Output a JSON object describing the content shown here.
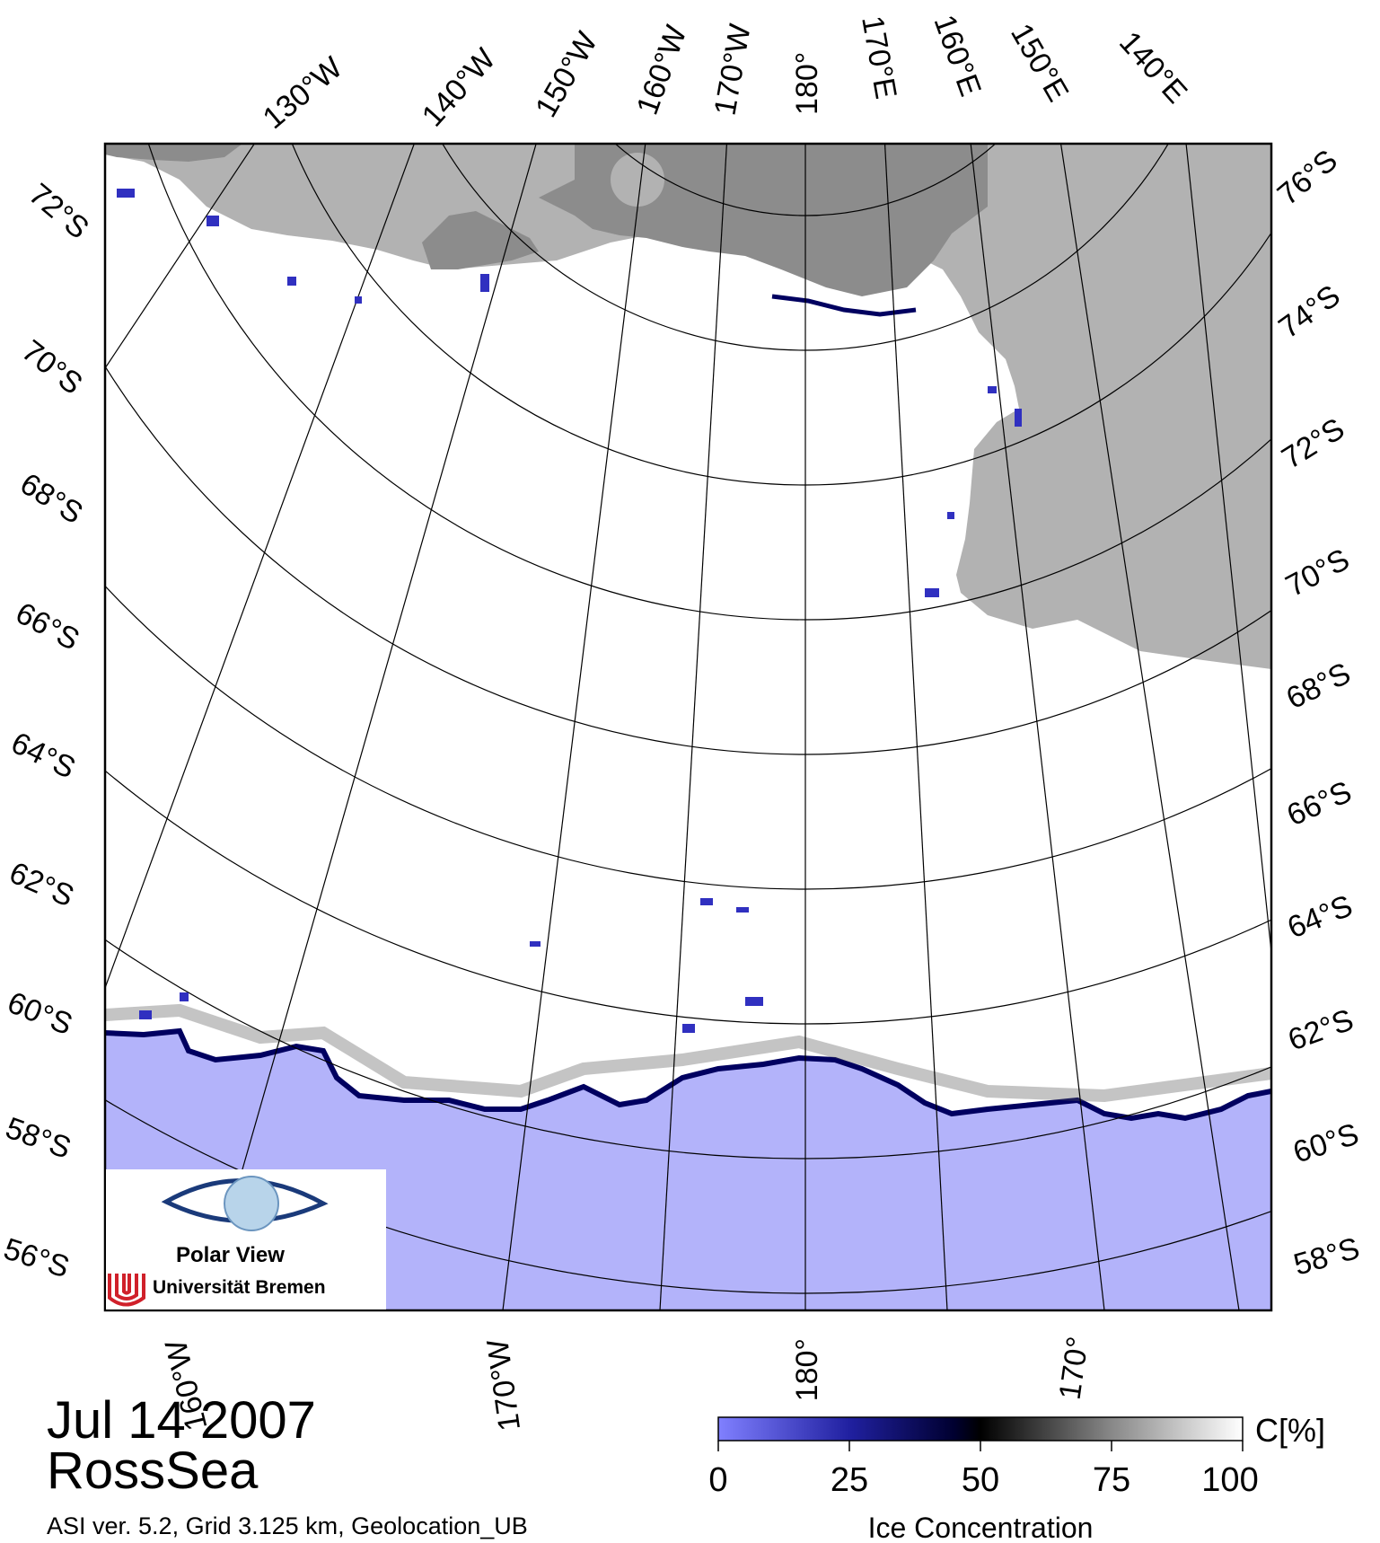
{
  "map": {
    "date": "Jul 14 2007",
    "region": "RossSea",
    "info": "ASI ver. 5.2,  Grid 3.125 km, Geolocation_UB",
    "colors": {
      "frame": "#000000",
      "land_dark": "#8c8c8c",
      "land_light": "#b2b2b2",
      "sea_ice": "#ffffff",
      "open_water": "#b3b3fa",
      "ice_edge": "#000060",
      "graticule": "#000000"
    },
    "graticule": {
      "top_meridians": [
        "130°W",
        "140°W",
        "150°W",
        "160°W",
        "170°W",
        "180°",
        "170°E",
        "160°E",
        "150°E",
        "140°E"
      ],
      "left_parallels": [
        "72°S",
        "70°S",
        "68°S",
        "66°S",
        "64°S",
        "62°S",
        "60°S",
        "58°S",
        "56°S"
      ],
      "right_parallels": [
        "76°S",
        "74°S",
        "72°S",
        "70°S",
        "68°S",
        "66°S",
        "64°S",
        "62°S",
        "60°S",
        "58°S"
      ],
      "bottom_meridians": [
        "160°W",
        "170°W",
        "180°",
        "170°"
      ]
    },
    "logo": {
      "line1": "Polar View",
      "line2": "Universität Bremen"
    },
    "colorbar": {
      "title": "Ice Concentration",
      "unit": "C[%]",
      "ticks": [
        "0",
        "25",
        "50",
        "75",
        "100"
      ]
    }
  }
}
